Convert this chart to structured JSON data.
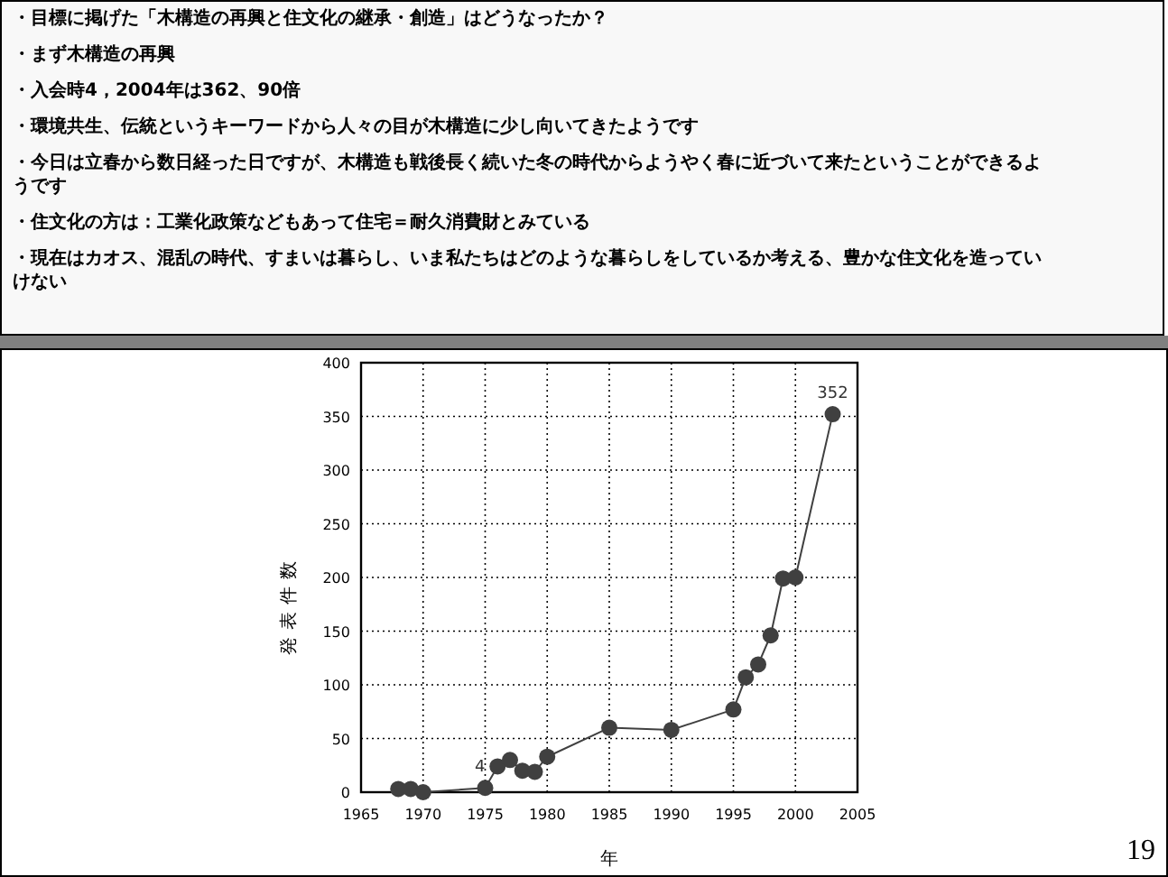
{
  "chart_data": {
    "type": "line",
    "xlabel": "年",
    "ylabel": "発表件数",
    "x": [
      1968,
      1969,
      1970,
      1975,
      1976,
      1977,
      1978,
      1979,
      1980,
      1985,
      1990,
      1995,
      1996,
      1997,
      1998,
      1999,
      2000,
      2003
    ],
    "series": [
      {
        "color": "#404040",
        "values": [
          3,
          3,
          0,
          4,
          24,
          30,
          20,
          19,
          33,
          60,
          58,
          77,
          107,
          119,
          146,
          199,
          200,
          352
        ],
        "value_labels": [
          null,
          null,
          null,
          "4",
          null,
          null,
          null,
          null,
          null,
          null,
          null,
          null,
          null,
          null,
          null,
          null,
          null,
          "352"
        ]
      }
    ],
    "xlim": [
      1965,
      2005
    ],
    "xticks": [
      1965,
      1970,
      1975,
      1980,
      1985,
      1990,
      1995,
      2000,
      2005
    ],
    "ylim": [
      0,
      400
    ],
    "yticks": [
      0,
      50,
      100,
      150,
      200,
      250,
      300,
      350,
      400
    ],
    "grid": true,
    "marker": "circle",
    "line_style": "solid",
    "annotations": [
      "・目標に掲げた「木構造の再興と住文化の継承・創造」はどうなったか？",
      "・まず木構造の再興",
      "・入会時4，2004年は362、90倍",
      "・環境共生、伝統というキーワードから人々の目が木構造に少し向いてきたようです",
      "・今日は立春から数日経った日ですが、木構造も戦後長く続いた冬の時代からようやく春に近づいて来たということができるようです",
      "・住文化の方は：工業化政策などもあって住宅＝耐久消費財とみている",
      "・現在はカオス、混乱の時代、すまいは暮らし、いま私たちはどのような暮らしをしているか考える、豊かな住文化を造っていけない",
      "19"
    ]
  }
}
